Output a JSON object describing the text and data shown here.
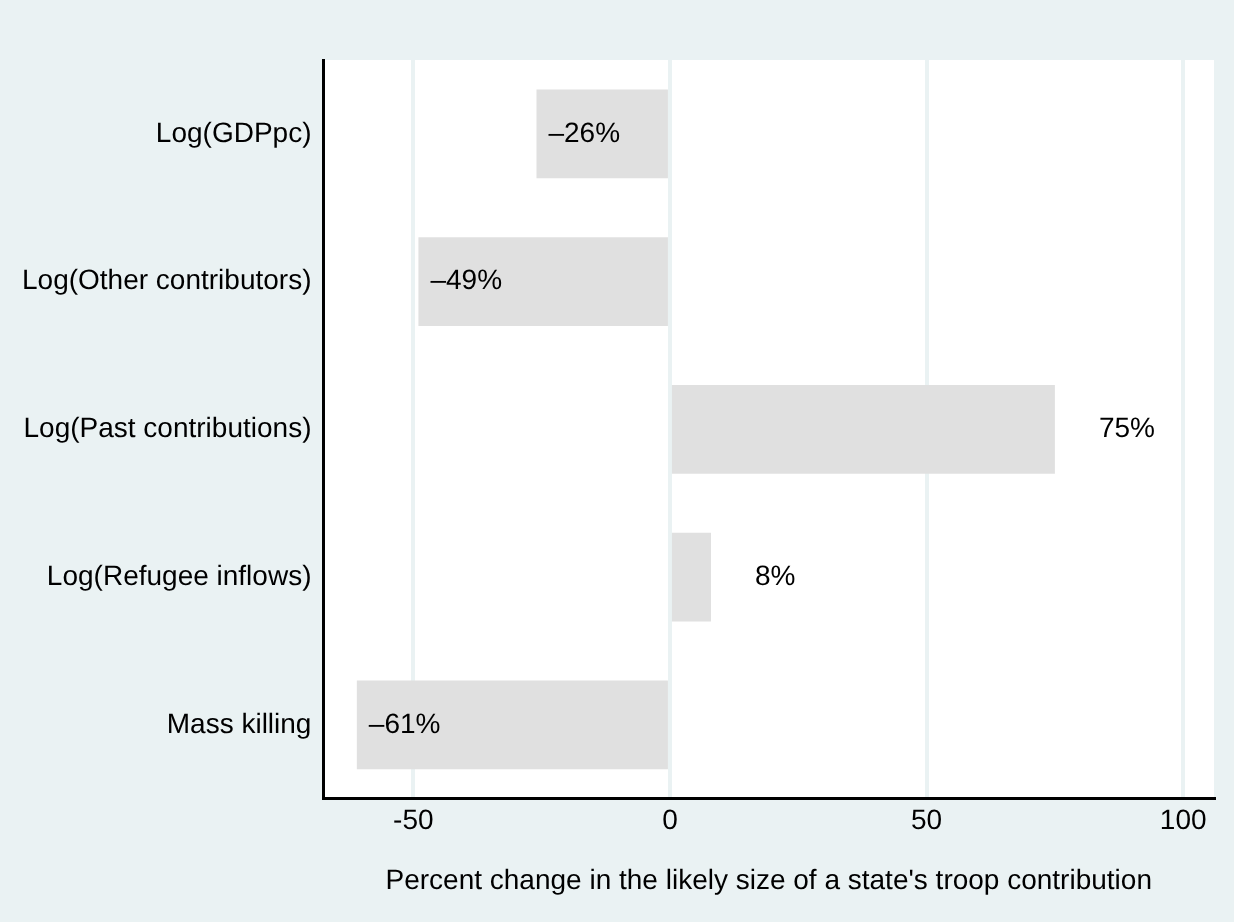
{
  "chart_data": {
    "type": "bar",
    "orientation": "horizontal",
    "xlabel": "Percent change in the likely size of a state's troop contribution",
    "categories": [
      "Log(GDPpc)",
      "Log(Other contributors)",
      "Log(Past contributions)",
      "Log(Refugee inflows)",
      "Mass killing"
    ],
    "values": [
      -26,
      -49,
      75,
      8,
      -61
    ],
    "value_labels": [
      "–26%",
      "–49%",
      "75%",
      "8%",
      "–61%"
    ],
    "color": "#e0e0e0",
    "xlim": [
      -67.5,
      106
    ],
    "xticks": [
      -50,
      0,
      50,
      100
    ],
    "grid": "x",
    "legend": false
  }
}
